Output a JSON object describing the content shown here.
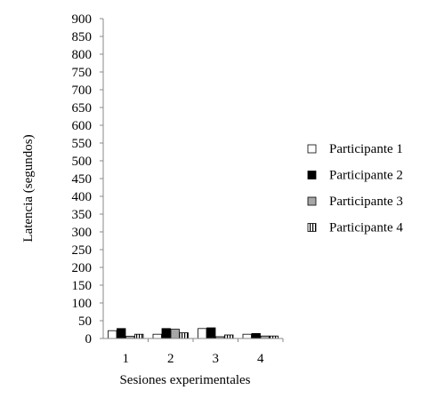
{
  "chart_data": {
    "type": "bar",
    "title": "",
    "xlabel": "Sesiones experimentales",
    "ylabel": "Latencia (segundos)",
    "categories": [
      "1",
      "2",
      "3",
      "4"
    ],
    "ylim": [
      0,
      900
    ],
    "yticks": [
      "0",
      "50",
      "100",
      "150",
      "200",
      "250",
      "300",
      "350",
      "400",
      "450",
      "500",
      "550",
      "600",
      "650",
      "700",
      "750",
      "800",
      "850",
      "900"
    ],
    "grid": false,
    "legend_position": "right",
    "series": [
      {
        "name": "Participante 1",
        "values": [
          22,
          12,
          28,
          12
        ],
        "color": "#ffffff",
        "pattern": "white"
      },
      {
        "name": "Participante 2",
        "values": [
          28,
          28,
          30,
          14
        ],
        "color": "#000000",
        "pattern": "black"
      },
      {
        "name": "Participante 3",
        "values": [
          6,
          26,
          5,
          7
        ],
        "color": "#a6a6a6",
        "pattern": "gray"
      },
      {
        "name": "Participante 4",
        "values": [
          12,
          16,
          10,
          7
        ],
        "color": "#ffffff",
        "pattern": "vertical-stripes"
      }
    ]
  }
}
